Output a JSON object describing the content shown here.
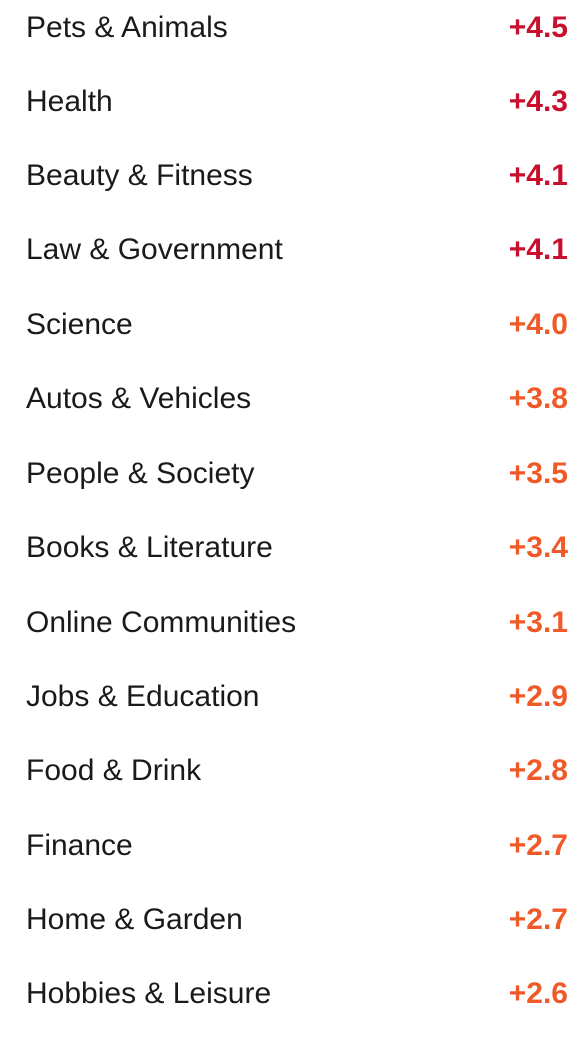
{
  "colors": {
    "label": "#1a1a1a",
    "high": "#c8102e",
    "medium": "#f05a28"
  },
  "categories": [
    {
      "label": "Pets & Animals",
      "value": "+4.5",
      "level": "high"
    },
    {
      "label": "Health",
      "value": "+4.3",
      "level": "high"
    },
    {
      "label": "Beauty & Fitness",
      "value": "+4.1",
      "level": "high"
    },
    {
      "label": "Law & Government",
      "value": "+4.1",
      "level": "high"
    },
    {
      "label": "Science",
      "value": "+4.0",
      "level": "medium"
    },
    {
      "label": "Autos & Vehicles",
      "value": "+3.8",
      "level": "medium"
    },
    {
      "label": "People & Society",
      "value": "+3.5",
      "level": "medium"
    },
    {
      "label": "Books & Literature",
      "value": "+3.4",
      "level": "medium"
    },
    {
      "label": "Online Communities",
      "value": "+3.1",
      "level": "medium"
    },
    {
      "label": "Jobs & Education",
      "value": "+2.9",
      "level": "medium"
    },
    {
      "label": "Food & Drink",
      "value": "+2.8",
      "level": "medium"
    },
    {
      "label": "Finance",
      "value": "+2.7",
      "level": "medium"
    },
    {
      "label": "Home & Garden",
      "value": "+2.7",
      "level": "medium"
    },
    {
      "label": "Hobbies & Leisure",
      "value": "+2.6",
      "level": "medium"
    }
  ]
}
